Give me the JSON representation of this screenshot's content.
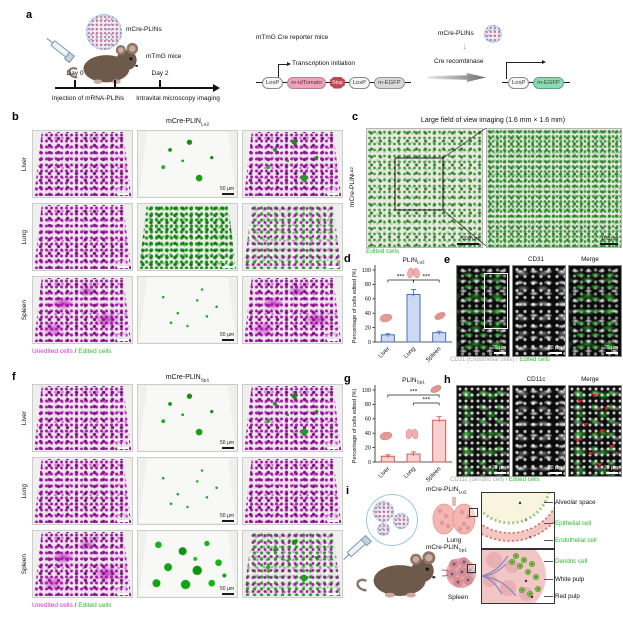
{
  "colors": {
    "unedited_magenta": "#cc33cc",
    "edited_green": "#2db82d",
    "chart_d_fill": "#ccd9f2",
    "chart_d_edge": "#4a6fb5",
    "chart_g_fill": "#f6d3d1",
    "chart_g_edge": "#cf5b56"
  },
  "panel_a": {
    "label": "a",
    "np_label": "mCre-PLINs",
    "mouse_label": "mTmG mice",
    "day0": "Day 0",
    "day2": "Day 2",
    "caption1": "Injection of mRNA-PLINs",
    "caption2": "Intravital microscopy imaging",
    "reporter_title": "mTmG Cre reporter mice",
    "transcription_label": "Transcription initiation",
    "np_label2": "mCre-PLINs",
    "cre_label": "Cre recombinase",
    "construct1": [
      {
        "label": "LoxP",
        "kind": "lox"
      },
      {
        "label": "m-tdTomato",
        "kind": "tdt"
      },
      {
        "label": "Stop",
        "kind": "stop"
      },
      {
        "label": "LoxP",
        "kind": "lox"
      },
      {
        "label": "m-EGFP",
        "kind": "eg"
      }
    ],
    "construct2": [
      {
        "label": "LoxP",
        "kind": "lox"
      },
      {
        "label": "m-EGFP",
        "kind": "egg"
      }
    ]
  },
  "panel_b": {
    "label": "b",
    "title_main": "mCre-PLIN",
    "title_sub": "Lu2",
    "row_labels": [
      "Liver",
      "Lung",
      "Spleen"
    ],
    "grid": [
      [
        "magenta",
        "sparse-blobs",
        "magenta-merge"
      ],
      [
        "magenta",
        "green-dense",
        "mix"
      ],
      [
        "magenta-blotch",
        "sparse-dots",
        "magenta-blotch"
      ]
    ],
    "scale_label": "50 µm",
    "legend_unedited": "Unedited cells",
    "legend_sep": " / ",
    "legend_edited": "Edited cells"
  },
  "panel_c": {
    "label": "c",
    "title": "Large field of view imaging (1.6 mm × 1.6 mm)",
    "side_main": "mCre-PLIN",
    "side_sub": "Lu2",
    "scale_left": "200 µm",
    "scale_right": "100 µm",
    "legend_edited": "Edited cells"
  },
  "chart_data": [
    {
      "id": "d",
      "panel_label": "d",
      "type": "bar",
      "title_main": "PLIN",
      "title_sub": "Lu2",
      "categories": [
        "Liver",
        "Lung",
        "Spleen"
      ],
      "values": [
        10,
        66,
        13
      ],
      "errors": [
        1.5,
        7,
        2
      ],
      "ylabel": "Percentage of cells edited (%)",
      "ylim": [
        0,
        100
      ],
      "yticks": [
        0,
        20,
        40,
        60,
        80,
        100
      ],
      "significance": [
        {
          "a": 0,
          "b": 1,
          "label": "***"
        },
        {
          "a": 1,
          "b": 2,
          "label": "***"
        }
      ],
      "bar_fill": "#ccd9f2",
      "bar_edge": "#4a6fb5",
      "legend_position": "none",
      "grid": false
    },
    {
      "id": "g",
      "panel_label": "g",
      "type": "bar",
      "title_main": "PLIN",
      "title_sub": "Sp1",
      "categories": [
        "Liver",
        "Lung",
        "Spleen"
      ],
      "values": [
        8,
        11,
        58
      ],
      "errors": [
        2,
        3,
        5
      ],
      "ylabel": "Percentage of cells edited (%)",
      "ylim": [
        0,
        100
      ],
      "yticks": [
        0,
        20,
        40,
        60,
        80,
        100
      ],
      "significance": [
        {
          "a": 0,
          "b": 2,
          "label": "***"
        },
        {
          "a": 1,
          "b": 2,
          "label": "***"
        }
      ],
      "bar_fill": "#f6d3d1",
      "bar_edge": "#cf5b56",
      "legend_position": "none",
      "grid": false
    }
  ],
  "panel_e": {
    "label": "e",
    "headers": [
      "CD31",
      "Merge"
    ],
    "caption_main": "CD31 (Endothelial cells) / ",
    "caption_green": "Edited cells",
    "scale_label": "20 µm",
    "cells": [
      "green-network",
      "gray-network",
      "green-network"
    ]
  },
  "panel_f": {
    "label": "f",
    "title_main": "mCre-PLIN",
    "title_sub": "Sp1",
    "row_labels": [
      "Liver",
      "Lung",
      "Spleen"
    ],
    "grid": [
      [
        "magenta",
        "sparse-blobs",
        "magenta-merge"
      ],
      [
        "magenta",
        "sparse-dots",
        "magenta"
      ],
      [
        "magenta-blotch",
        "many-blobs",
        "mix-green"
      ]
    ],
    "scale_label": "50 µm",
    "legend_unedited": "Unedited cells",
    "legend_sep": " / ",
    "legend_edited": "Edited cells"
  },
  "panel_h": {
    "label": "h",
    "headers": [
      "CD11c",
      "Merge"
    ],
    "caption_main": "CD11c (dendric cell) / ",
    "caption_green": "Edited cells",
    "scale_label": "20 µm",
    "cells": [
      "green-patches",
      "gray-network",
      "green-patches"
    ]
  },
  "panel_i": {
    "label": "i",
    "lung_title_main": "mCre-PLIN",
    "lung_title_sub": "Lu2",
    "spleen_title_main": "mCre-PLIN",
    "spleen_title_sub": "Sp1",
    "lung_label": "Lung",
    "spleen_label": "Spleen",
    "lung_annotations": [
      {
        "text": "Alveolar space",
        "color": "black"
      },
      {
        "text": "Epithelial cell",
        "color": "green"
      },
      {
        "text": "Endothelial cell",
        "color": "green"
      }
    ],
    "spleen_annotations": [
      {
        "text": "Dendric cell",
        "color": "green"
      },
      {
        "text": "White pulp",
        "color": "black"
      },
      {
        "text": "Red pulp",
        "color": "black"
      }
    ]
  }
}
